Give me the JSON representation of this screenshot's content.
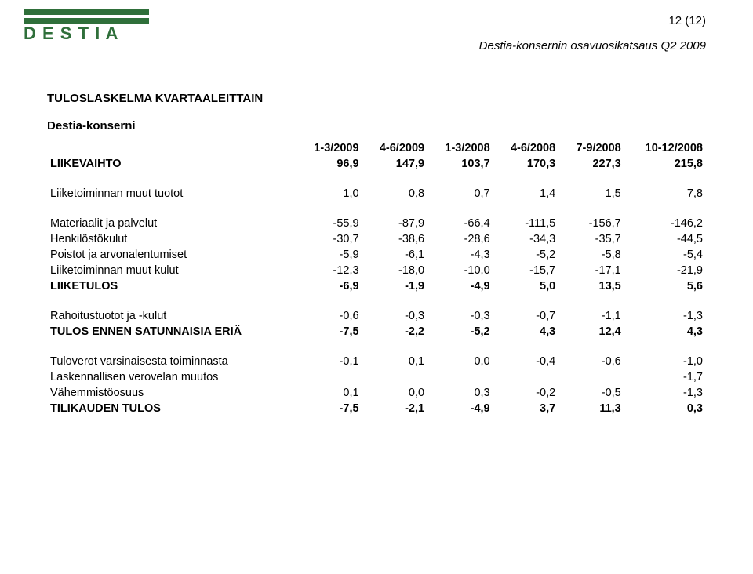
{
  "logo": {
    "text": "DESTIA",
    "color": "#2f6f3a"
  },
  "page_number": "12 (12)",
  "subtitle": "Destia-konsernin osavuosikatsaus Q2 2009",
  "heading": "TULOSLASKELMA KVARTAALEITTAIN",
  "subheading": "Destia-konserni",
  "columns": [
    "1-3/2009",
    "4-6/2009",
    "1-3/2008",
    "4-6/2008",
    "7-9/2008",
    "10-12/2008"
  ],
  "rows": [
    {
      "type": "data",
      "bold": true,
      "label": "LIIKEVAIHTO",
      "values": [
        "96,9",
        "147,9",
        "103,7",
        "170,3",
        "227,3",
        "215,8"
      ]
    },
    {
      "type": "spacer"
    },
    {
      "type": "data",
      "bold": false,
      "label": "Liiketoiminnan muut tuotot",
      "values": [
        "1,0",
        "0,8",
        "0,7",
        "1,4",
        "1,5",
        "7,8"
      ]
    },
    {
      "type": "spacer"
    },
    {
      "type": "data",
      "bold": false,
      "label": "Materiaalit ja palvelut",
      "values": [
        "-55,9",
        "-87,9",
        "-66,4",
        "-111,5",
        "-156,7",
        "-146,2"
      ]
    },
    {
      "type": "data",
      "bold": false,
      "label": "Henkilöstökulut",
      "values": [
        "-30,7",
        "-38,6",
        "-28,6",
        "-34,3",
        "-35,7",
        "-44,5"
      ]
    },
    {
      "type": "data",
      "bold": false,
      "label": "Poistot ja arvonalentumiset",
      "values": [
        "-5,9",
        "-6,1",
        "-4,3",
        "-5,2",
        "-5,8",
        "-5,4"
      ]
    },
    {
      "type": "data",
      "bold": false,
      "label": "Liiketoiminnan muut kulut",
      "values": [
        "-12,3",
        "-18,0",
        "-10,0",
        "-15,7",
        "-17,1",
        "-21,9"
      ]
    },
    {
      "type": "data",
      "bold": true,
      "label": "LIIKETULOS",
      "values": [
        "-6,9",
        "-1,9",
        "-4,9",
        "5,0",
        "13,5",
        "5,6"
      ]
    },
    {
      "type": "spacer"
    },
    {
      "type": "data",
      "bold": false,
      "label": "Rahoitustuotot ja -kulut",
      "values": [
        "-0,6",
        "-0,3",
        "-0,3",
        "-0,7",
        "-1,1",
        "-1,3"
      ]
    },
    {
      "type": "data",
      "bold": true,
      "label": "TULOS ENNEN SATUNNAISIA ERIÄ",
      "values": [
        "-7,5",
        "-2,2",
        "-5,2",
        "4,3",
        "12,4",
        "4,3"
      ]
    },
    {
      "type": "spacer"
    },
    {
      "type": "data",
      "bold": false,
      "label": "Tuloverot varsinaisesta toiminnasta",
      "values": [
        "-0,1",
        "0,1",
        "0,0",
        "-0,4",
        "-0,6",
        "-1,0"
      ]
    },
    {
      "type": "data",
      "bold": false,
      "label": "Laskennallisen verovelan muutos",
      "values": [
        "",
        "",
        "",
        "",
        "",
        "-1,7"
      ]
    },
    {
      "type": "data",
      "bold": false,
      "label": "Vähemmistöosuus",
      "values": [
        "0,1",
        "0,0",
        "0,3",
        "-0,2",
        "-0,5",
        "-1,3"
      ]
    },
    {
      "type": "data",
      "bold": true,
      "label": "TILIKAUDEN TULOS",
      "values": [
        "-7,5",
        "-2,1",
        "-4,9",
        "3,7",
        "11,3",
        "0,3"
      ]
    }
  ]
}
